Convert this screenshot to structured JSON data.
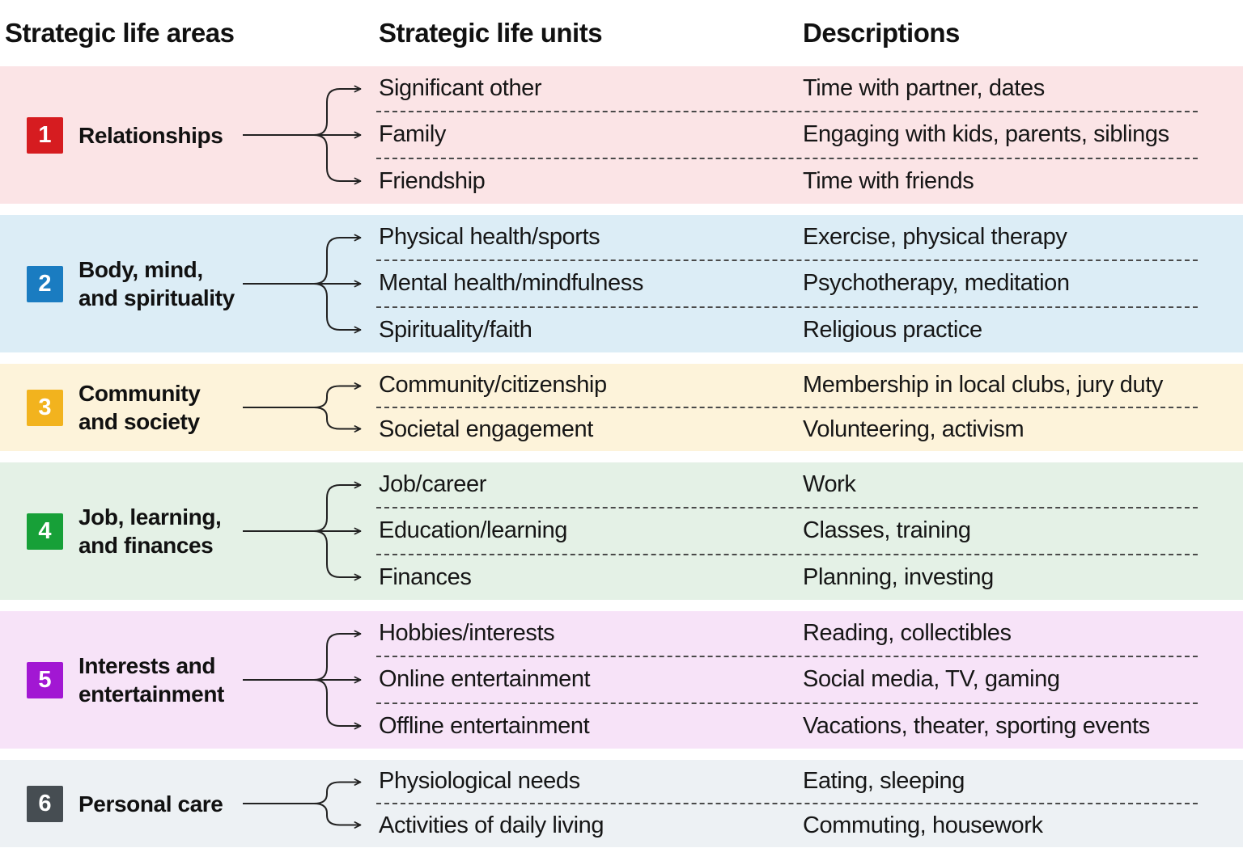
{
  "header": {
    "col1": "Strategic life areas",
    "col2": "Strategic life units",
    "col3": "Descriptions"
  },
  "connector_color": "#222222",
  "bands": [
    {
      "number": "1",
      "label": "Relationships",
      "badge_color": "#d61c20",
      "band_color": "#fbe4e6",
      "rows": [
        {
          "unit": "Significant other",
          "description": "Time with partner, dates"
        },
        {
          "unit": "Family",
          "description": "Engaging with kids, parents, siblings"
        },
        {
          "unit": "Friendship",
          "description": "Time with friends"
        }
      ]
    },
    {
      "number": "2",
      "label": "Body, mind,\nand spirituality",
      "badge_color": "#1a7cc1",
      "band_color": "#dcedf6",
      "rows": [
        {
          "unit": "Physical health/sports",
          "description": "Exercise, physical therapy"
        },
        {
          "unit": "Mental health/mindfulness",
          "description": "Psychotherapy, meditation"
        },
        {
          "unit": "Spirituality/faith",
          "description": "Religious practice"
        }
      ]
    },
    {
      "number": "3",
      "label": "Community\nand society",
      "badge_color": "#f2b31e",
      "band_color": "#fdf3da",
      "rows": [
        {
          "unit": "Community/citizenship",
          "description": "Membership in local clubs, jury duty"
        },
        {
          "unit": "Societal engagement",
          "description": "Volunteering, activism"
        }
      ]
    },
    {
      "number": "4",
      "label": "Job, learning,\nand finances",
      "badge_color": "#17a038",
      "band_color": "#e4f1e6",
      "rows": [
        {
          "unit": "Job/career",
          "description": "Work"
        },
        {
          "unit": "Education/learning",
          "description": "Classes, training"
        },
        {
          "unit": "Finances",
          "description": "Planning, investing"
        }
      ]
    },
    {
      "number": "5",
      "label": "Interests and\nentertainment",
      "badge_color": "#a217d3",
      "band_color": "#f7e3f8",
      "rows": [
        {
          "unit": "Hobbies/interests",
          "description": "Reading, collectibles"
        },
        {
          "unit": "Online entertainment",
          "description": "Social media, TV, gaming"
        },
        {
          "unit": "Offline entertainment",
          "description": "Vacations, theater, sporting events"
        }
      ]
    },
    {
      "number": "6",
      "label": "Personal care",
      "badge_color": "#464d52",
      "band_color": "#edf1f4",
      "rows": [
        {
          "unit": "Physiological needs",
          "description": "Eating, sleeping"
        },
        {
          "unit": "Activities of daily living",
          "description": "Commuting, housework"
        }
      ]
    }
  ]
}
